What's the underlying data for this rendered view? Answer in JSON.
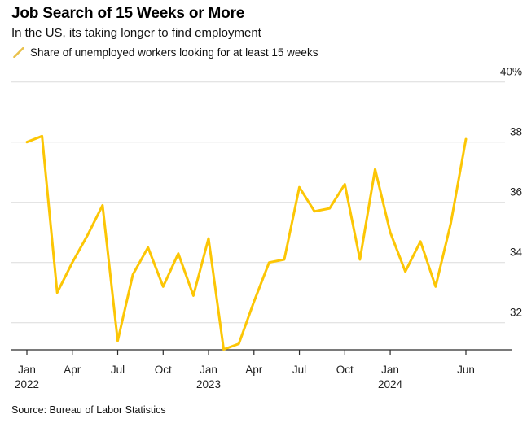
{
  "header": {
    "title": "Job Search of 15 Weeks or More",
    "subtitle": "In the US, its taking longer to find employment"
  },
  "legend": {
    "label": "Share of unemployed workers looking for at least 15 weeks",
    "marker_icon": "yellow-slash-icon"
  },
  "source": "Source: Bureau of Labor Statistics",
  "colors": {
    "line": "#FCC605",
    "legend_slash": "#E9C14B",
    "gridline": "#dcdcdc",
    "axis": "#2b2b2b",
    "tick_label": "#1f1f1f",
    "background": "#ffffff"
  },
  "chart_data": {
    "type": "line",
    "title": "Job Search of 15 Weeks or More",
    "subtitle": "In the US, its taking longer to find employment",
    "series_name": "Share of unemployed workers looking for at least 15 weeks",
    "x": [
      "Jan 2022",
      "Feb 2022",
      "Mar 2022",
      "Apr 2022",
      "May 2022",
      "Jun 2022",
      "Jul 2022",
      "Aug 2022",
      "Sep 2022",
      "Oct 2022",
      "Nov 2022",
      "Dec 2022",
      "Jan 2023",
      "Feb 2023",
      "Mar 2023",
      "Apr 2023",
      "May 2023",
      "Jun 2023",
      "Jul 2023",
      "Aug 2023",
      "Sep 2023",
      "Oct 2023",
      "Nov 2023",
      "Dec 2023",
      "Jan 2024",
      "Feb 2024",
      "Mar 2024",
      "Apr 2024",
      "May 2024",
      "Jun 2024"
    ],
    "values": [
      38.0,
      38.2,
      33.0,
      34.0,
      34.9,
      35.9,
      31.4,
      33.6,
      34.5,
      33.2,
      34.3,
      32.9,
      34.8,
      31.0,
      31.3,
      32.7,
      34.0,
      34.1,
      36.5,
      35.7,
      35.8,
      36.6,
      34.1,
      37.1,
      35.0,
      33.7,
      34.7,
      33.2,
      35.3,
      38.1
    ],
    "unit": "%",
    "ylim": [
      31.1,
      40.3
    ],
    "y_ticks": [
      {
        "value": 40,
        "label": "40%"
      },
      {
        "value": 38,
        "label": "38"
      },
      {
        "value": 36,
        "label": "36"
      },
      {
        "value": 34,
        "label": "34"
      },
      {
        "value": 32,
        "label": "32"
      }
    ],
    "x_ticks": [
      {
        "index": 0,
        "label": "Jan",
        "year": "2022"
      },
      {
        "index": 3,
        "label": "Apr"
      },
      {
        "index": 6,
        "label": "Jul"
      },
      {
        "index": 9,
        "label": "Oct"
      },
      {
        "index": 12,
        "label": "Jan",
        "year": "2023"
      },
      {
        "index": 15,
        "label": "Apr"
      },
      {
        "index": 18,
        "label": "Jul"
      },
      {
        "index": 21,
        "label": "Oct"
      },
      {
        "index": 24,
        "label": "Jan",
        "year": "2024"
      },
      {
        "index": 29,
        "label": "Jun"
      }
    ],
    "grid": "horizontal",
    "legend_position": "top-left",
    "y_axis_side": "right"
  }
}
